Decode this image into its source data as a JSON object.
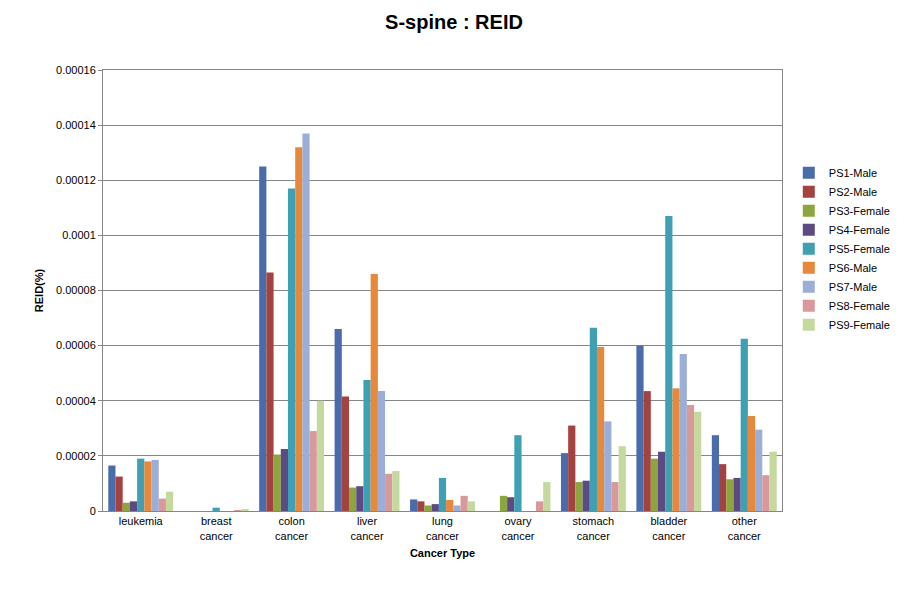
{
  "chart_data": {
    "type": "bar",
    "title": "S-spine : REID",
    "x_label": "Cancer Type",
    "y_label": "REID(%)",
    "categories": [
      "leukemia",
      "breast cancer",
      "colon cancer",
      "liver cancer",
      "lung cancer",
      "ovary cancer",
      "stomach cancer",
      "bladder cancer",
      "other cancer"
    ],
    "series": [
      {
        "name": "PS1-Male",
        "color": "#4A6CAA",
        "values": [
          1.65e-05,
          0,
          0.000125,
          6.6e-05,
          4.2e-06,
          0,
          2.1e-05,
          6e-05,
          2.75e-05
        ]
      },
      {
        "name": "PS2-Male",
        "color": "#A3423F",
        "values": [
          1.25e-05,
          0,
          8.65e-05,
          4.15e-05,
          3.5e-06,
          0,
          3.1e-05,
          4.35e-05,
          1.7e-05
        ]
      },
      {
        "name": "PS3-Female",
        "color": "#8CA53E",
        "values": [
          3e-06,
          0,
          2.05e-05,
          8.5e-06,
          2e-06,
          5.5e-06,
          1.05e-05,
          1.9e-05,
          1.15e-05
        ]
      },
      {
        "name": "PS4-Female",
        "color": "#5D4A82",
        "values": [
          3.5e-06,
          0,
          2.25e-05,
          9e-06,
          2.5e-06,
          5e-06,
          1.1e-05,
          2.15e-05,
          1.2e-05
        ]
      },
      {
        "name": "PS5-Female",
        "color": "#3FA0B4",
        "values": [
          1.9e-05,
          1.2e-06,
          0.000117,
          4.75e-05,
          1.2e-05,
          2.75e-05,
          6.65e-05,
          0.000107,
          6.25e-05
        ]
      },
      {
        "name": "PS6-Male",
        "color": "#E8883A",
        "values": [
          1.8e-05,
          0,
          0.000132,
          8.6e-05,
          4e-06,
          0,
          5.95e-05,
          4.45e-05,
          3.45e-05
        ]
      },
      {
        "name": "PS7-Male",
        "color": "#9BAED8",
        "values": [
          1.85e-05,
          0,
          0.000137,
          4.35e-05,
          2e-06,
          0,
          3.25e-05,
          5.7e-05,
          2.95e-05
        ]
      },
      {
        "name": "PS8-Female",
        "color": "#D9999A",
        "values": [
          4.5e-06,
          2e-07,
          2.9e-05,
          1.35e-05,
          5.5e-06,
          3.5e-06,
          1.05e-05,
          3.85e-05,
          1.3e-05
        ]
      },
      {
        "name": "PS9-Female",
        "color": "#C5D89E",
        "values": [
          7e-06,
          5e-07,
          4e-05,
          1.45e-05,
          3.5e-06,
          1.05e-05,
          2.35e-05,
          3.6e-05,
          2.15e-05
        ]
      }
    ],
    "ylim": [
      0,
      0.00016
    ],
    "yticks": [
      0,
      2e-05,
      4e-05,
      6e-05,
      8e-05,
      0.0001,
      0.00012,
      0.00014,
      0.00016
    ],
    "grid": true,
    "legend": "right"
  }
}
